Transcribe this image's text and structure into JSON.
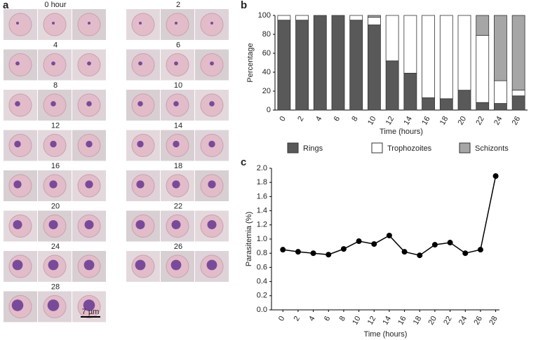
{
  "panel_a": {
    "letter": "a",
    "labels": [
      "0 hour",
      "2",
      "4",
      "6",
      "8",
      "10",
      "12",
      "14",
      "16",
      "18",
      "20",
      "22",
      "24",
      "26",
      "28"
    ],
    "scale_bar": "7 µm"
  },
  "chart_data": [
    {
      "type": "stacked_bar",
      "panel_label": "b",
      "xlabel": "Time (hours)",
      "ylabel": "Percentage",
      "categories": [
        "0",
        "2",
        "4",
        "6",
        "8",
        "10",
        "12",
        "14",
        "16",
        "18",
        "20",
        "22",
        "24",
        "26"
      ],
      "series": [
        {
          "name": "Rings",
          "color": "#595959",
          "values": [
            95,
            95,
            100,
            100,
            95,
            90,
            52,
            39,
            13,
            12,
            21,
            8,
            7,
            15
          ]
        },
        {
          "name": "Trophozoites",
          "color": "#ffffff",
          "values": [
            5,
            5,
            0,
            0,
            5,
            8,
            48,
            61,
            87,
            88,
            79,
            71,
            24,
            6
          ]
        },
        {
          "name": "Schizonts",
          "color": "#a6a6a6",
          "values": [
            0,
            0,
            0,
            0,
            0,
            2,
            0,
            0,
            0,
            0,
            0,
            21,
            69,
            79
          ]
        }
      ],
      "ylim": [
        0,
        100
      ],
      "yticks": [
        0,
        20,
        40,
        60,
        80,
        100
      ],
      "legend": "bottom"
    },
    {
      "type": "line",
      "panel_label": "c",
      "xlabel": "Time (hours)",
      "ylabel": "Parasitemia (%)",
      "color": "#000000",
      "x": [
        0,
        2,
        4,
        6,
        8,
        10,
        12,
        14,
        16,
        18,
        20,
        22,
        24,
        26,
        28
      ],
      "values": [
        0.85,
        0.82,
        0.8,
        0.78,
        0.86,
        0.97,
        0.93,
        1.05,
        0.82,
        0.77,
        0.92,
        0.95,
        0.8,
        0.85,
        1.89
      ],
      "xlim": [
        -1.5,
        28.5
      ],
      "xticks": [
        0,
        2,
        4,
        6,
        8,
        10,
        12,
        14,
        16,
        18,
        20,
        22,
        24,
        26,
        28
      ],
      "ylim": [
        0,
        2
      ],
      "yticks": [
        {
          "value": 0,
          "label": "0.0"
        },
        0.2,
        0.4,
        0.6,
        0.8,
        {
          "value": 1,
          "label": "1.0"
        },
        1.2,
        1.4,
        1.6,
        1.8,
        {
          "value": 2,
          "label": "2.0"
        }
      ]
    }
  ]
}
